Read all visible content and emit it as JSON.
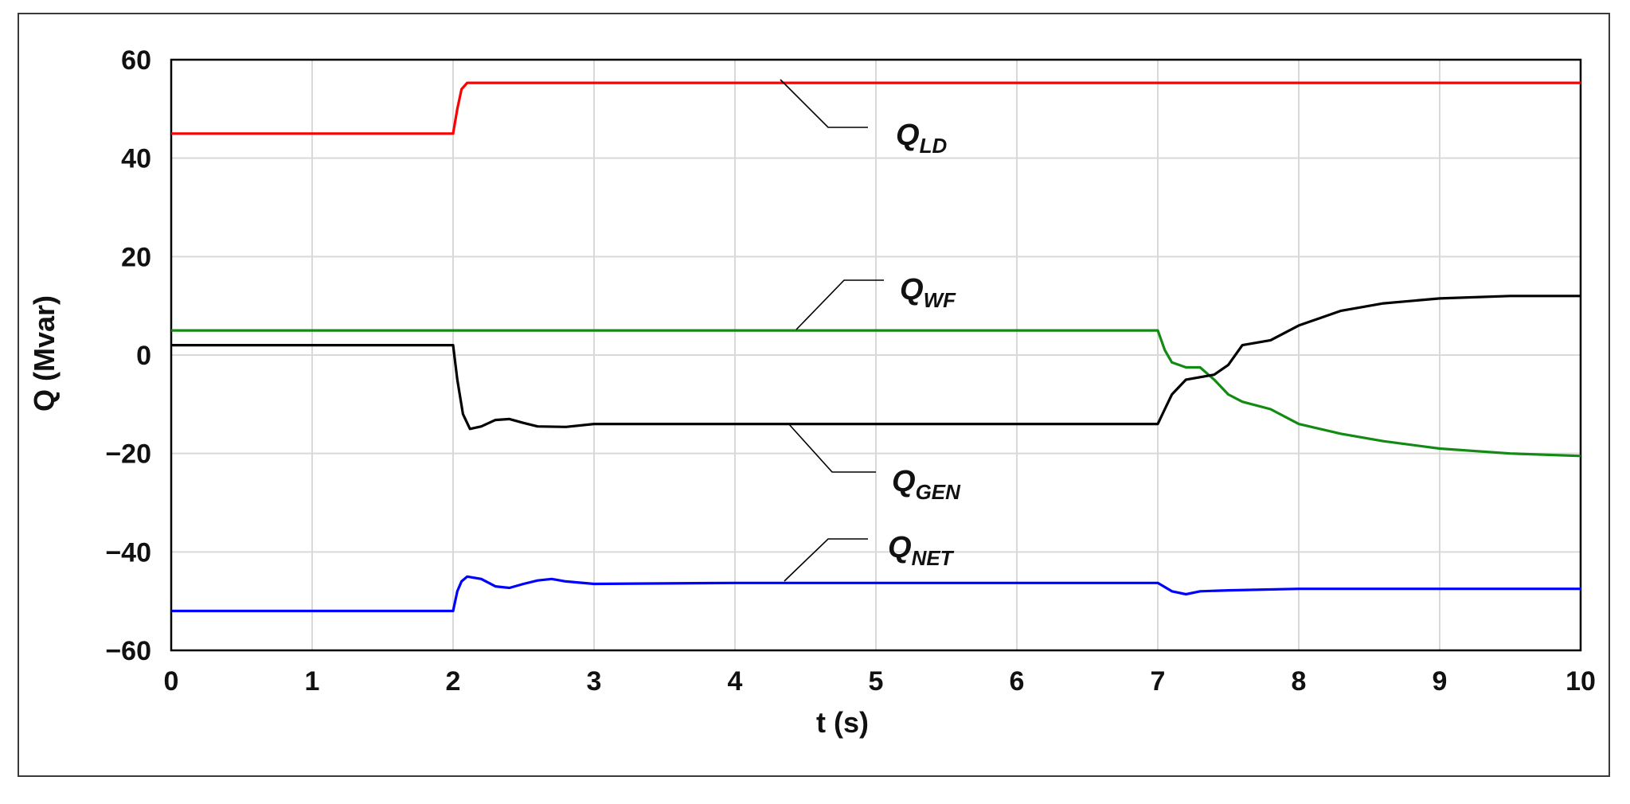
{
  "chart_data": {
    "type": "line",
    "title": "",
    "xlabel": "t (s)",
    "ylabel": "Q (Mvar)",
    "xlim": [
      0,
      10
    ],
    "ylim": [
      -60,
      60
    ],
    "xticks": [
      "0",
      "1",
      "2",
      "3",
      "4",
      "5",
      "6",
      "7",
      "8",
      "9",
      "10"
    ],
    "yticks": [
      "60",
      "40",
      "20",
      "0",
      "−20",
      "−40",
      "−60"
    ],
    "grid": true,
    "legend": "none",
    "series": [
      {
        "label_main": "Q",
        "label_sub": "LD",
        "color": "#ff0000",
        "x": [
          0,
          2.0,
          2.03,
          2.06,
          2.1,
          2.15,
          10
        ],
        "y": [
          45,
          45,
          50,
          54,
          55.3,
          55.3,
          55.3
        ]
      },
      {
        "label_main": "Q",
        "label_sub": "WF",
        "color": "#138a13",
        "x": [
          0,
          7.0,
          7.05,
          7.1,
          7.2,
          7.3,
          7.4,
          7.5,
          7.6,
          7.8,
          8.0,
          8.3,
          8.6,
          9.0,
          9.5,
          10
        ],
        "y": [
          5,
          5,
          1,
          -1.5,
          -2.5,
          -2.5,
          -5,
          -8,
          -9.5,
          -11,
          -14,
          -16,
          -17.5,
          -19,
          -20,
          -20.5
        ]
      },
      {
        "label_main": "Q",
        "label_sub": "GEN",
        "color": "#000000",
        "x": [
          0,
          2.0,
          2.03,
          2.07,
          2.12,
          2.2,
          2.3,
          2.4,
          2.5,
          2.6,
          2.8,
          3.0,
          4.0,
          5.0,
          6.0,
          7.0,
          7.05,
          7.1,
          7.2,
          7.3,
          7.4,
          7.5,
          7.6,
          7.8,
          8.0,
          8.3,
          8.6,
          9.0,
          9.5,
          10
        ],
        "y": [
          2,
          2,
          -5,
          -12,
          -15,
          -14.5,
          -13.2,
          -13,
          -13.8,
          -14.5,
          -14.6,
          -14,
          -14,
          -14,
          -14,
          -14,
          -11,
          -8,
          -5,
          -4.5,
          -4,
          -2,
          2,
          3,
          6,
          9,
          10.5,
          11.5,
          12,
          12
        ]
      },
      {
        "label_main": "Q",
        "label_sub": "NET",
        "color": "#0000ff",
        "x": [
          0,
          2.0,
          2.03,
          2.06,
          2.1,
          2.2,
          2.3,
          2.4,
          2.5,
          2.6,
          2.7,
          2.8,
          3.0,
          4.0,
          5.0,
          6.0,
          7.0,
          7.1,
          7.2,
          7.3,
          7.5,
          8.0,
          9.0,
          10
        ],
        "y": [
          -52,
          -52,
          -48,
          -46,
          -45,
          -45.5,
          -47,
          -47.3,
          -46.5,
          -45.8,
          -45.5,
          -46,
          -46.5,
          -46.3,
          -46.3,
          -46.3,
          -46.3,
          -48,
          -48.6,
          -48,
          -47.8,
          -47.5,
          -47.5,
          -47.5
        ]
      }
    ],
    "annotations": [
      {
        "text_main": "Q",
        "text_sub": "LD",
        "points_to": "Q_LD"
      },
      {
        "text_main": "Q",
        "text_sub": "WF",
        "points_to": "Q_WF"
      },
      {
        "text_main": "Q",
        "text_sub": "GEN",
        "points_to": "Q_GEN"
      },
      {
        "text_main": "Q",
        "text_sub": "NET",
        "points_to": "Q_NET"
      }
    ]
  }
}
